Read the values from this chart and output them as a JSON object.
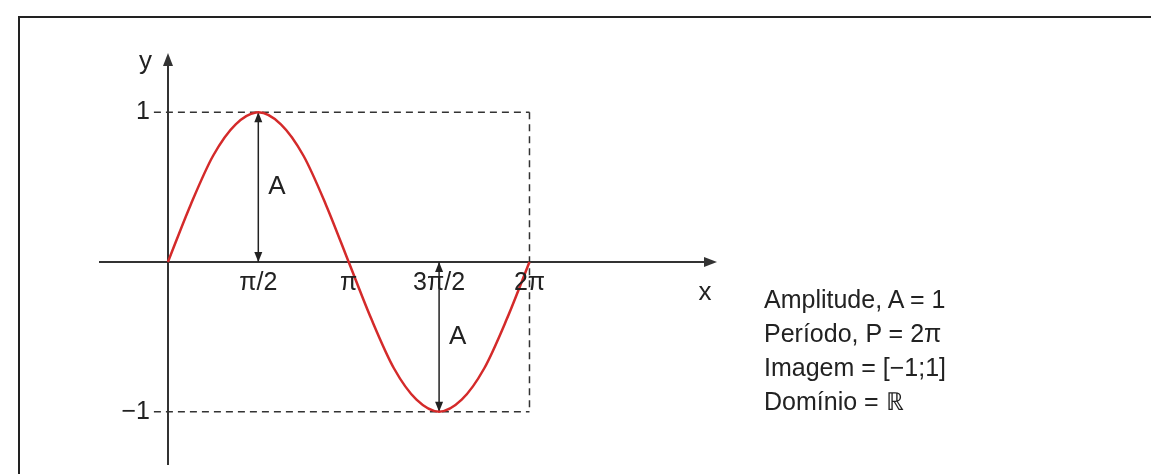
{
  "chart_data": {
    "type": "line",
    "xlabel": "x",
    "ylabel": "y",
    "x": [
      0,
      0.3927,
      0.7854,
      1.1781,
      1.5708,
      1.9635,
      2.3562,
      2.7489,
      3.1416,
      3.5343,
      3.927,
      4.3197,
      4.7124,
      5.1051,
      5.4978,
      5.8905,
      6.2832
    ],
    "series": [
      {
        "color": "#d42a2a",
        "values": [
          0,
          0.38,
          0.71,
          0.92,
          1,
          0.92,
          0.71,
          0.38,
          0,
          -0.38,
          -0.71,
          -0.92,
          -1,
          -0.92,
          -0.71,
          -0.38,
          0
        ]
      }
    ],
    "xlim": [
      -1.18,
      9.42
    ],
    "ylim": [
      -1.35,
      1.35
    ],
    "xticks": [
      {
        "value": 1.5708,
        "label": "π/2"
      },
      {
        "value": 3.1416,
        "label": "π"
      },
      {
        "value": 4.7124,
        "label": "3π/2"
      },
      {
        "value": 6.2832,
        "label": "2π"
      }
    ],
    "yticks": [
      {
        "value": -1,
        "label": "−1"
      },
      1
    ],
    "ref_lines": [
      {
        "axis": "y",
        "value": 1,
        "color": "#333333",
        "line_style": "dashed"
      },
      {
        "axis": "y",
        "value": -1,
        "color": "#333333",
        "line_style": "dashed"
      },
      {
        "axis": "x",
        "value": 6.2832,
        "color": "#333333",
        "line_style": "dashed"
      }
    ],
    "annotations": [
      {
        "text": "A",
        "x": 1.5708,
        "y": 1
      },
      {
        "text": "A",
        "x": 4.7124,
        "y": -1
      },
      "Amplitude, A = 1",
      "Período, P = 2π",
      "Imagem = [−1;1]",
      "Domínio = ℝ"
    ],
    "marker": "none",
    "line_style": "solid",
    "grid": false,
    "legend": false
  }
}
